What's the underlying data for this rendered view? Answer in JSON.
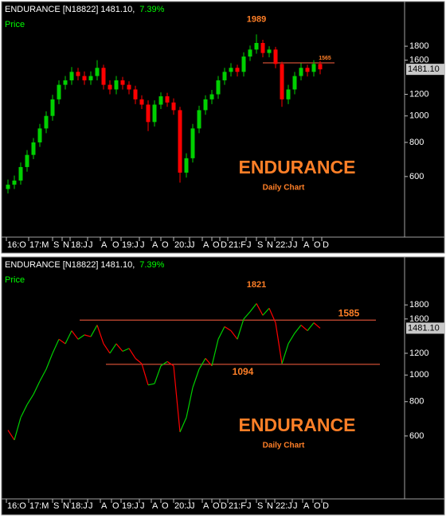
{
  "chart_data": [
    {
      "type": "candlestick",
      "header": "ENDURANCE [N18822] 1481.10,",
      "change": "7.39%",
      "series_label": "Price",
      "watermark": "ENDURANCE",
      "watermark_sub": "Daily Chart",
      "x": [
        0,
        1,
        2,
        3,
        4,
        5,
        6,
        7,
        8,
        9,
        10,
        11,
        12,
        13,
        14,
        15,
        16,
        17,
        18,
        19,
        20,
        21,
        22,
        23,
        24,
        25,
        26,
        27,
        28,
        29,
        30,
        31,
        32,
        33,
        34,
        35,
        36,
        37,
        38,
        39,
        40,
        41,
        42,
        43,
        44,
        45,
        46,
        47,
        48,
        49
      ],
      "open": [
        540,
        560,
        580,
        650,
        720,
        800,
        900,
        1000,
        1150,
        1300,
        1350,
        1450,
        1400,
        1350,
        1400,
        1500,
        1300,
        1250,
        1350,
        1300,
        1250,
        1150,
        1100,
        950,
        1100,
        1180,
        1120,
        1050,
        620,
        700,
        900,
        1050,
        1150,
        1200,
        1350,
        1450,
        1500,
        1450,
        1650,
        1750,
        1850,
        1700,
        1750,
        1550,
        1150,
        1250,
        1400,
        1500,
        1450,
        1550
      ],
      "high": [
        585,
        605,
        675,
        750,
        830,
        935,
        1040,
        1195,
        1350,
        1400,
        1510,
        1500,
        1455,
        1455,
        1600,
        1540,
        1350,
        1400,
        1390,
        1340,
        1290,
        1190,
        1140,
        1140,
        1220,
        1215,
        1160,
        1080,
        730,
        935,
        1090,
        1190,
        1245,
        1400,
        1500,
        1560,
        1540,
        1710,
        1810,
        1989,
        1900,
        1800,
        1790,
        1580,
        1300,
        1450,
        1560,
        1540,
        1600,
        1590
      ],
      "low": [
        520,
        540,
        560,
        625,
        695,
        770,
        865,
        960,
        1105,
        1250,
        1300,
        1350,
        1300,
        1300,
        1350,
        1250,
        1200,
        1200,
        1250,
        1200,
        1105,
        1060,
        880,
        915,
        1060,
        1080,
        1010,
        570,
        595,
        675,
        865,
        1010,
        1105,
        1155,
        1300,
        1395,
        1395,
        1395,
        1590,
        1690,
        1640,
        1640,
        1495,
        1080,
        1105,
        1200,
        1350,
        1395,
        1395,
        1420
      ],
      "close": [
        560,
        580,
        650,
        720,
        800,
        900,
        1000,
        1150,
        1300,
        1350,
        1450,
        1400,
        1350,
        1400,
        1500,
        1300,
        1250,
        1350,
        1300,
        1250,
        1150,
        1100,
        950,
        1100,
        1180,
        1120,
        1050,
        620,
        700,
        900,
        1050,
        1150,
        1200,
        1350,
        1450,
        1500,
        1450,
        1650,
        1750,
        1850,
        1700,
        1750,
        1550,
        1150,
        1250,
        1400,
        1500,
        1450,
        1550,
        1481.1
      ],
      "up_color": "#00d000",
      "down_color": "#ff0000",
      "log_scale": true,
      "ylim": [
        360,
        2570
      ],
      "yticks": [
        600,
        800,
        1000,
        1200,
        1600,
        1800
      ],
      "xlim": [
        -0.625,
        62.25
      ],
      "xticks": [
        {
          "value": -0.25,
          "label": "16:O"
        },
        {
          "value": 3.25,
          "label": "17:M"
        },
        {
          "value": 7,
          "label": "S"
        },
        {
          "value": 8.5,
          "label": "N"
        },
        {
          "value": 9.75,
          "label": "18:J"
        },
        {
          "value": 12.5,
          "label": "J"
        },
        {
          "value": 14.5,
          "label": "A"
        },
        {
          "value": 16.25,
          "label": "O"
        },
        {
          "value": 17.75,
          "label": "19:J"
        },
        {
          "value": 20.625,
          "label": "J"
        },
        {
          "value": 22.5,
          "label": "A"
        },
        {
          "value": 24,
          "label": "O"
        },
        {
          "value": 26,
          "label": "20:J"
        },
        {
          "value": 28.5,
          "label": "J"
        },
        {
          "value": 30.5,
          "label": "A"
        },
        {
          "value": 32,
          "label": "O"
        },
        {
          "value": 33.25,
          "label": "D"
        },
        {
          "value": 34.5,
          "label": "21:F"
        },
        {
          "value": 37.375,
          "label": "J"
        },
        {
          "value": 39,
          "label": "S"
        },
        {
          "value": 40.5,
          "label": "N"
        },
        {
          "value": 41.875,
          "label": "22:J"
        },
        {
          "value": 44.625,
          "label": "J"
        },
        {
          "value": 46.25,
          "label": "A"
        },
        {
          "value": 47.875,
          "label": "O"
        },
        {
          "value": 49.25,
          "label": "D"
        }
      ],
      "last_price": {
        "value": 1481.1,
        "label": "1481.10"
      },
      "levels": [
        {
          "value": 1565,
          "label": "1565",
          "x_range": [
            40,
            51.25
          ],
          "label_at": "end",
          "label_size": "small"
        }
      ],
      "annotations": [
        {
          "text": "1989",
          "x": 39,
          "y": 2250
        }
      ]
    },
    {
      "type": "line",
      "header": "ENDURANCE [N18822] 1481.10,",
      "change": "7.39%",
      "series_label": "Price",
      "watermark": "ENDURANCE",
      "watermark_sub": "Daily Chart",
      "x": [
        0,
        1,
        2,
        3,
        4,
        5,
        6,
        7,
        8,
        9,
        10,
        11,
        12,
        13,
        14,
        15,
        16,
        17,
        18,
        19,
        20,
        21,
        22,
        23,
        24,
        25,
        26,
        27,
        28,
        29,
        30,
        31,
        32,
        33,
        34,
        35,
        36,
        37,
        38,
        39,
        40,
        41,
        42,
        43,
        44,
        45,
        46,
        47,
        48,
        49
      ],
      "values": [
        630,
        580,
        700,
        780,
        850,
        950,
        1050,
        1200,
        1350,
        1300,
        1450,
        1350,
        1400,
        1380,
        1520,
        1300,
        1200,
        1300,
        1220,
        1250,
        1150,
        1100,
        920,
        930,
        1080,
        1120,
        1080,
        620,
        700,
        900,
        1050,
        1150,
        1080,
        1350,
        1500,
        1450,
        1350,
        1600,
        1700,
        1821,
        1650,
        1750,
        1550,
        1100,
        1300,
        1420,
        1520,
        1450,
        1550,
        1481.1
      ],
      "up_color": "#00d000",
      "down_color": "#ff0000",
      "log_scale": true,
      "ylim": [
        354,
        2636
      ],
      "yticks": [
        600,
        800,
        1000,
        1200,
        1600,
        1800
      ],
      "xlim": [
        -0.625,
        62.25
      ],
      "xticks": [
        {
          "value": -0.25,
          "label": "16:O"
        },
        {
          "value": 3.25,
          "label": "17:M"
        },
        {
          "value": 7,
          "label": "S"
        },
        {
          "value": 8.5,
          "label": "N"
        },
        {
          "value": 9.75,
          "label": "18:J"
        },
        {
          "value": 12.5,
          "label": "J"
        },
        {
          "value": 14.5,
          "label": "A"
        },
        {
          "value": 16.25,
          "label": "O"
        },
        {
          "value": 17.75,
          "label": "19:J"
        },
        {
          "value": 20.625,
          "label": "J"
        },
        {
          "value": 22.5,
          "label": "A"
        },
        {
          "value": 24,
          "label": "O"
        },
        {
          "value": 26,
          "label": "20:J"
        },
        {
          "value": 28.5,
          "label": "J"
        },
        {
          "value": 30.5,
          "label": "A"
        },
        {
          "value": 32,
          "label": "O"
        },
        {
          "value": 33.25,
          "label": "D"
        },
        {
          "value": 34.5,
          "label": "21:F"
        },
        {
          "value": 37.375,
          "label": "J"
        },
        {
          "value": 39,
          "label": "S"
        },
        {
          "value": 40.5,
          "label": "N"
        },
        {
          "value": 41.875,
          "label": "22:J"
        },
        {
          "value": 44.625,
          "label": "J"
        },
        {
          "value": 46.25,
          "label": "A"
        },
        {
          "value": 47.875,
          "label": "O"
        },
        {
          "value": 49.25,
          "label": "D"
        }
      ],
      "last_price": {
        "value": 1481.1,
        "label": "1481.10"
      },
      "levels": [
        {
          "value": 1585,
          "label": "1585",
          "x_range": [
            11.25,
            57.75
          ],
          "label_at": "end",
          "label_size": "large"
        },
        {
          "value": 1094,
          "label": "1094",
          "x_range": [
            15.375,
            58.375
          ],
          "label_at": "middle",
          "label_size": "large"
        }
      ],
      "annotations": [
        {
          "text": "1821",
          "x": 39,
          "y": 2130
        }
      ]
    }
  ]
}
